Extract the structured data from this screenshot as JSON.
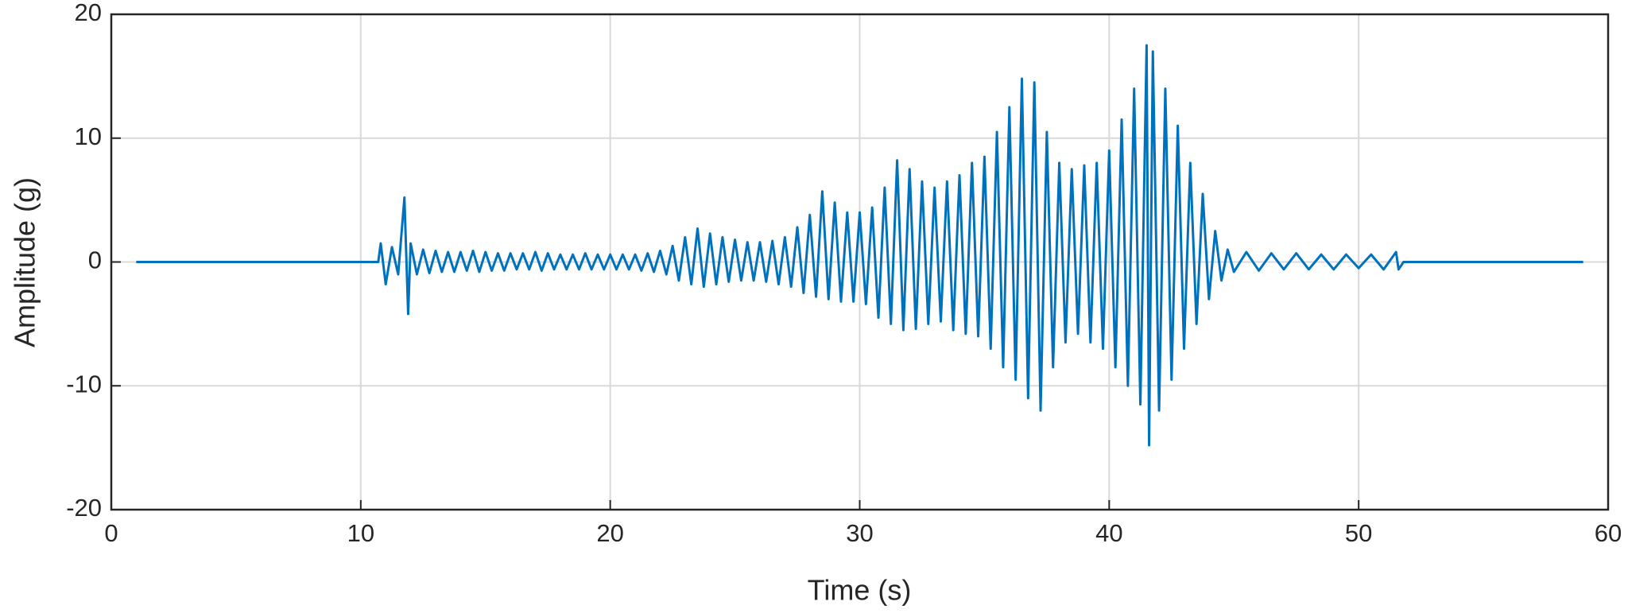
{
  "chart_data": {
    "type": "line",
    "xlabel": "Time (s)",
    "ylabel": "Amplitude (g)",
    "xlim": [
      0,
      60
    ],
    "xticks": [
      0,
      10,
      20,
      30,
      40,
      50,
      60
    ],
    "ylim": [
      -20,
      20
    ],
    "yticks": [
      -20,
      -10,
      0,
      10,
      20
    ],
    "grid": true,
    "x": [
      1,
      10.7,
      10.8,
      11.0,
      11.25,
      11.5,
      11.75,
      11.9,
      12.0,
      12.25,
      12.5,
      12.75,
      13,
      13.25,
      13.5,
      13.75,
      14,
      14.25,
      14.5,
      14.75,
      15,
      15.25,
      15.5,
      15.75,
      16,
      16.25,
      16.5,
      16.75,
      17,
      17.25,
      17.5,
      17.75,
      18,
      18.25,
      18.5,
      18.75,
      19,
      19.25,
      19.5,
      19.75,
      20,
      20.25,
      20.5,
      20.75,
      21,
      21.25,
      21.5,
      21.75,
      22,
      22.25,
      22.5,
      22.75,
      23,
      23.25,
      23.5,
      23.75,
      24,
      24.25,
      24.5,
      24.75,
      25,
      25.25,
      25.5,
      25.75,
      26,
      26.25,
      26.5,
      26.75,
      27,
      27.25,
      27.5,
      27.75,
      28,
      28.25,
      28.5,
      28.75,
      29,
      29.25,
      29.5,
      29.75,
      30,
      30.25,
      30.5,
      30.75,
      31,
      31.25,
      31.5,
      31.75,
      32,
      32.25,
      32.5,
      32.75,
      33,
      33.25,
      33.5,
      33.75,
      34,
      34.25,
      34.5,
      34.75,
      35,
      35.25,
      35.5,
      35.75,
      36,
      36.25,
      36.5,
      36.75,
      37,
      37.25,
      37.5,
      37.75,
      38,
      38.25,
      38.5,
      38.75,
      39,
      39.25,
      39.5,
      39.75,
      40,
      40.25,
      40.5,
      40.75,
      41,
      41.25,
      41.5,
      41.6,
      41.75,
      42,
      42.25,
      42.5,
      42.75,
      43,
      43.25,
      43.5,
      43.75,
      44,
      44.25,
      44.5,
      44.75,
      45,
      45.5,
      46,
      46.5,
      47,
      47.5,
      48,
      48.5,
      49,
      49.5,
      50,
      50.5,
      51,
      51.5,
      51.6,
      51.8,
      59
    ],
    "series": [
      {
        "color": "#0072bd",
        "values": [
          0,
          0,
          1.5,
          -1.8,
          1.2,
          -1.0,
          5.2,
          -4.2,
          1.5,
          -1.0,
          1.0,
          -0.9,
          0.9,
          -0.8,
          0.8,
          -0.8,
          0.8,
          -0.7,
          0.9,
          -0.8,
          0.8,
          -0.7,
          0.7,
          -0.7,
          0.7,
          -0.6,
          0.7,
          -0.6,
          0.8,
          -0.7,
          0.7,
          -0.6,
          0.6,
          -0.6,
          0.6,
          -0.6,
          0.7,
          -0.6,
          0.6,
          -0.6,
          0.6,
          -0.6,
          0.6,
          -0.6,
          0.6,
          -0.7,
          0.7,
          -0.8,
          0.9,
          -1.0,
          1.3,
          -1.5,
          2.0,
          -1.8,
          2.7,
          -2.0,
          2.3,
          -1.8,
          2.0,
          -1.6,
          1.8,
          -1.5,
          1.6,
          -1.5,
          1.6,
          -1.6,
          1.7,
          -1.8,
          2.0,
          -2.0,
          2.8,
          -2.5,
          3.8,
          -2.8,
          5.7,
          -3.0,
          4.8,
          -3.2,
          4.0,
          -3.2,
          4.0,
          -3.4,
          4.4,
          -4.5,
          6.0,
          -5.0,
          8.2,
          -5.5,
          7.5,
          -5.4,
          6.5,
          -5.0,
          6.0,
          -4.8,
          6.5,
          -5.5,
          7.0,
          -5.8,
          8.0,
          -6.0,
          8.5,
          -7.0,
          10.5,
          -8.5,
          12.5,
          -9.5,
          14.8,
          -11.0,
          14.5,
          -12.0,
          10.5,
          -8.5,
          8.0,
          -6.5,
          7.5,
          -5.8,
          7.8,
          -6.5,
          8.0,
          -7.0,
          9.0,
          -8.5,
          11.5,
          -10.0,
          14.0,
          -11.5,
          17.5,
          -14.8,
          17.0,
          -12.0,
          14.0,
          -9.5,
          11.0,
          -7.0,
          8.0,
          -5.0,
          5.5,
          -3.0,
          2.5,
          -1.5,
          1.0,
          -0.8,
          0.8,
          -0.7,
          0.7,
          -0.6,
          0.7,
          -0.6,
          0.6,
          -0.6,
          0.6,
          -0.5,
          0.6,
          -0.6,
          0.8,
          -0.6,
          0,
          0
        ]
      }
    ]
  }
}
